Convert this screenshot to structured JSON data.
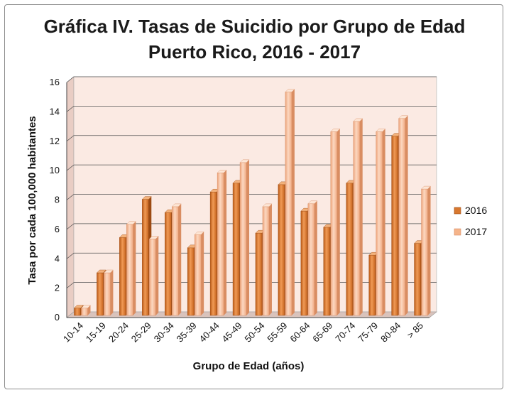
{
  "chart_data": {
    "type": "bar",
    "title": "Gráfica IV. Tasas de Suicidio por Grupo de Edad",
    "subtitle": "Puerto Rico, 2016 - 2017",
    "xlabel": "Grupo de Edad (años)",
    "ylabel": "Tasa por cada 100,000 habitantes",
    "ylim": [
      0,
      16
    ],
    "yticks": [
      0,
      2,
      4,
      6,
      8,
      10,
      12,
      14,
      16
    ],
    "grid": true,
    "legend_position": "right",
    "categories": [
      "10-14",
      "15-19",
      "20-24",
      "25-29",
      "30-34",
      "35-39",
      "40-44",
      "45-49",
      "50-54",
      "55-59",
      "60-64",
      "65-69",
      "70-74",
      "75-79",
      "80-84",
      "> 85"
    ],
    "series": [
      {
        "name": "2016",
        "color": "#d8782f",
        "values": [
          0.5,
          2.9,
          5.3,
          7.9,
          7.0,
          4.6,
          8.4,
          9.0,
          5.6,
          8.9,
          7.1,
          6.0,
          9.0,
          4.1,
          12.2,
          4.9
        ]
      },
      {
        "name": "2017",
        "color": "#f5b48a",
        "values": [
          0.5,
          2.9,
          6.2,
          5.2,
          7.4,
          5.5,
          9.7,
          10.4,
          7.4,
          15.2,
          7.6,
          12.5,
          13.2,
          12.5,
          13.4,
          8.6
        ]
      }
    ]
  }
}
